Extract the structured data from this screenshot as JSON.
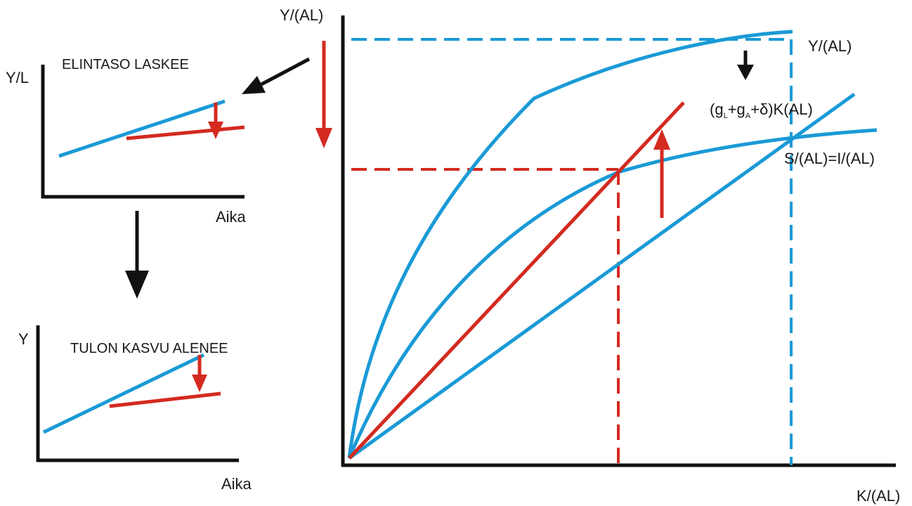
{
  "main_diagram": {
    "y_axis_label": "Y/(AL)",
    "x_axis_label": "K/(AL)",
    "output_curve_label": "Y/(AL)",
    "savings_curve_label": "S/(AL)=I/(AL)",
    "depreciation_line_label": {
      "prefix": "(g",
      "sub_L": "L",
      "plus1": "+g",
      "sub_A": "A",
      "suffix": "+δ)K(AL)"
    }
  },
  "top_inset": {
    "title": "ELINTASO LASKEE",
    "y_axis_label": "Y/L",
    "x_axis_label": "Aika"
  },
  "bottom_inset": {
    "title": "TULON KASVU ALENEE",
    "y_axis_label": "Y",
    "x_axis_label": "Aika"
  },
  "colors": {
    "blue": "#1a9ad6",
    "red": "#d42a20",
    "black": "#111111"
  }
}
